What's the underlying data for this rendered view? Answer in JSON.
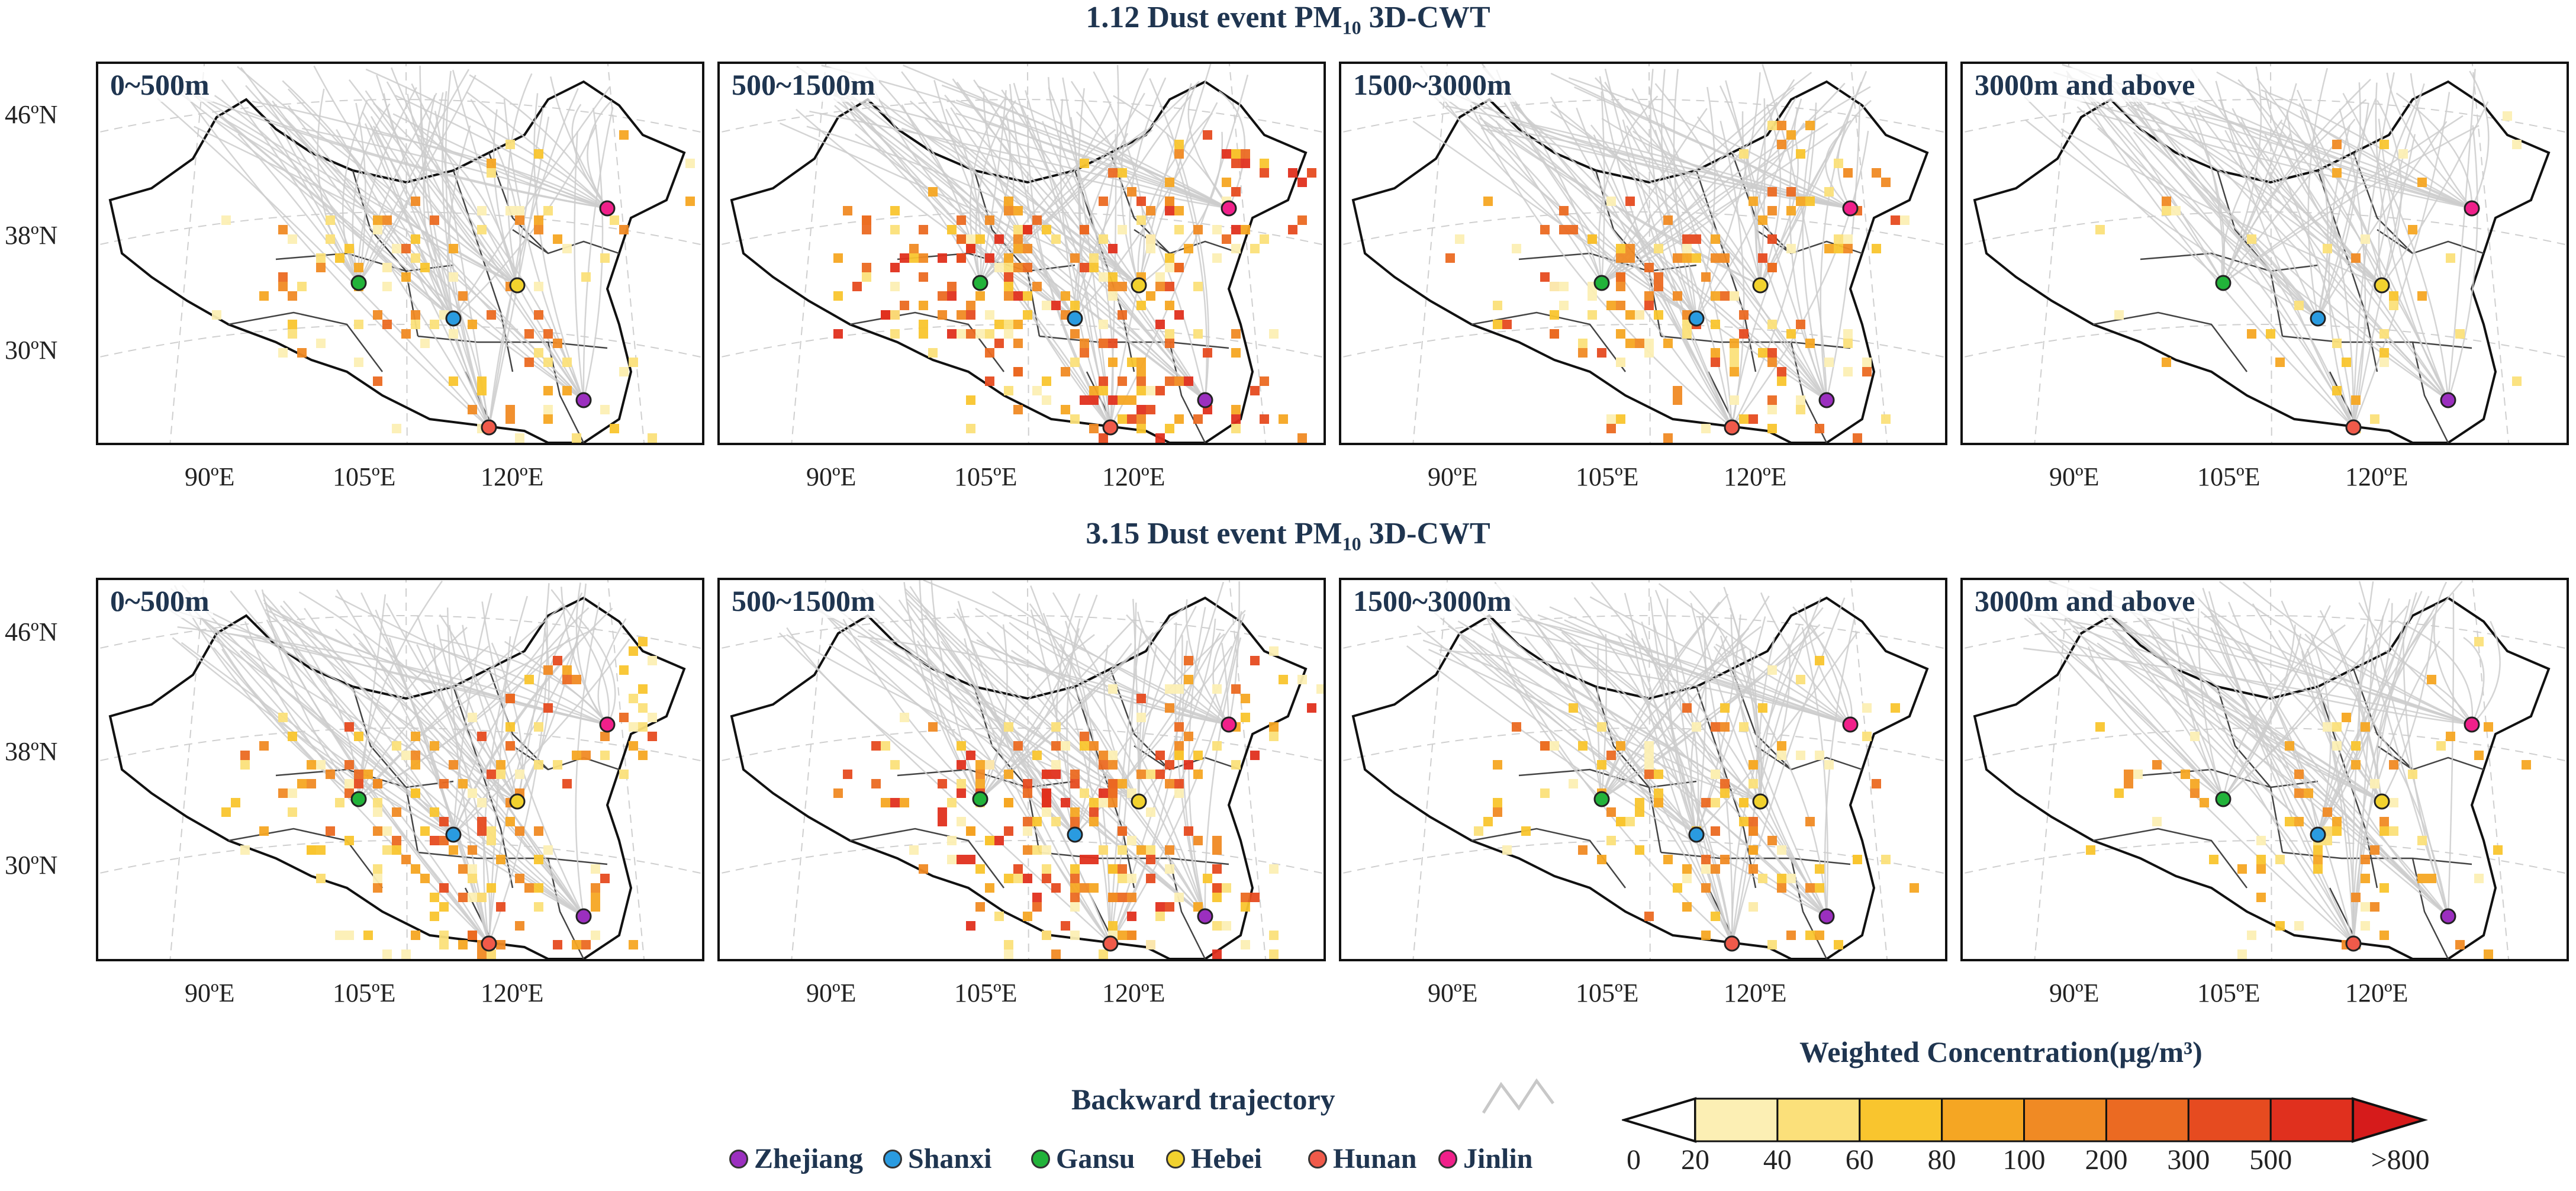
{
  "rows": [
    {
      "title": "1.12  Dust event PM",
      "title_sub": "10",
      "title_suffix": " 3D-CWT",
      "panels": [
        {
          "label": "0~500m",
          "intensity": 0.35
        },
        {
          "label": "500~1500m",
          "intensity": 0.9
        },
        {
          "label": "1500~3000m",
          "intensity": 0.55
        },
        {
          "label": "3000m and above",
          "intensity": 0.08
        }
      ]
    },
    {
      "title": "3.15  Dust event PM",
      "title_sub": "10",
      "title_suffix": " 3D-CWT",
      "panels": [
        {
          "label": "0~500m",
          "intensity": 0.6
        },
        {
          "label": "500~1500m",
          "intensity": 0.85
        },
        {
          "label": "1500~3000m",
          "intensity": 0.4
        },
        {
          "label": "3000m and above",
          "intensity": 0.25
        }
      ]
    }
  ],
  "lat_labels": [
    "46ºN",
    "38ºN",
    "30ºN"
  ],
  "lon_labels": [
    "90ºE",
    "105ºE",
    "120ºE"
  ],
  "legend": {
    "trajectory_title": "Backward trajectory",
    "sites": [
      {
        "name": "Zhejiang",
        "color": "#9b2fbf"
      },
      {
        "name": "Shanxi",
        "color": "#2a9be0"
      },
      {
        "name": "Gansu",
        "color": "#22b33a"
      },
      {
        "name": "Hebei",
        "color": "#f2d22e"
      },
      {
        "name": "Hunan",
        "color": "#f05a4a"
      },
      {
        "name": "Jinlin",
        "color": "#f0208a"
      }
    ],
    "colorbar_title": "Weighted Concentration(μg/m³)",
    "colorbar_ticks": [
      "0",
      "20",
      "40",
      "60",
      "80",
      "100",
      "200",
      "300",
      "500",
      ">800"
    ],
    "colorbar_colors": [
      "#ffffff",
      "#fcefb4",
      "#fbe07a",
      "#f9c52e",
      "#f5a623",
      "#f08a24",
      "#eb6a22",
      "#e64b20",
      "#e0301e",
      "#d61b1b"
    ]
  }
}
